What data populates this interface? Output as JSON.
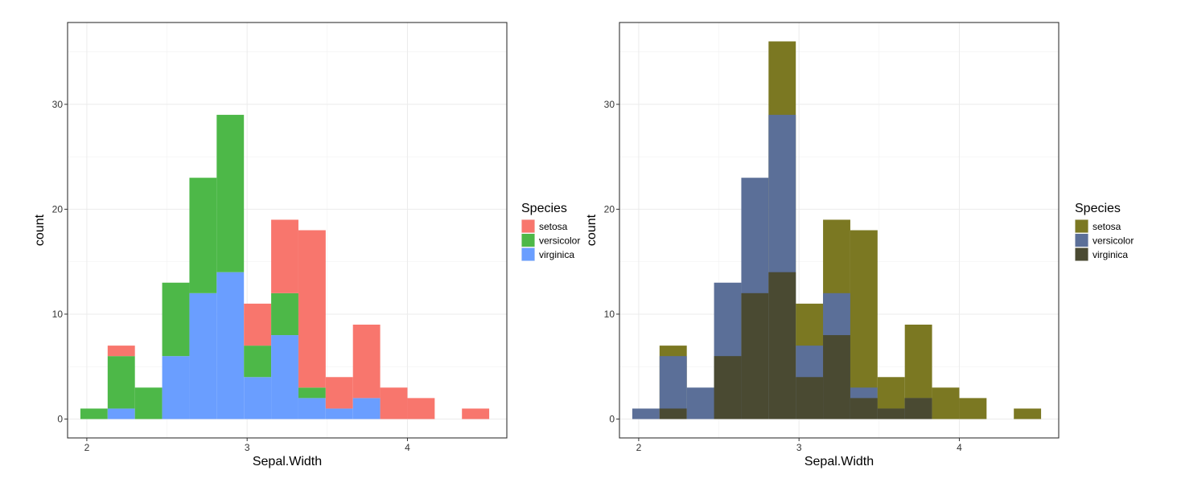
{
  "chart_data": [
    {
      "type": "bar",
      "variant": "stacked histogram",
      "xlabel": "Sepal.Width",
      "ylabel": "count",
      "x_ticks": [
        2,
        3,
        4
      ],
      "y_ticks": [
        0,
        10,
        20,
        30
      ],
      "xlim": [
        1.88,
        4.62
      ],
      "ylim": [
        -1.8,
        37.8
      ],
      "grid": true,
      "legend": {
        "title": "Species",
        "position": "right"
      },
      "bins": [
        [
          1.96,
          2.13
        ],
        [
          2.13,
          2.3
        ],
        [
          2.3,
          2.47
        ],
        [
          2.47,
          2.64
        ],
        [
          2.64,
          2.81
        ],
        [
          2.81,
          2.98
        ],
        [
          2.98,
          3.15
        ],
        [
          3.15,
          3.32
        ],
        [
          3.32,
          3.49
        ],
        [
          3.49,
          3.66
        ],
        [
          3.66,
          3.83
        ],
        [
          3.83,
          4.0
        ],
        [
          4.0,
          4.17
        ],
        [
          4.17,
          4.34
        ],
        [
          4.34,
          4.51
        ]
      ],
      "series": [
        {
          "name": "setosa",
          "color": "#F8766D",
          "values": [
            0,
            1,
            0,
            0,
            0,
            0,
            4,
            7,
            15,
            3,
            7,
            3,
            2,
            0,
            1
          ]
        },
        {
          "name": "versicolor",
          "color": "#4DB848",
          "values": [
            1,
            5,
            3,
            7,
            11,
            15,
            3,
            4,
            1,
            0,
            0,
            0,
            0,
            0,
            0
          ]
        },
        {
          "name": "virginica",
          "color": "#6A9EFF",
          "values": [
            0,
            1,
            0,
            6,
            12,
            14,
            4,
            8,
            2,
            1,
            2,
            0,
            0,
            0,
            0
          ]
        }
      ]
    },
    {
      "type": "bar",
      "variant": "overlapping histogram",
      "xlabel": "Sepal.Width",
      "ylabel": "count",
      "x_ticks": [
        2,
        3,
        4
      ],
      "y_ticks": [
        0,
        10,
        20,
        30
      ],
      "xlim": [
        1.88,
        4.62
      ],
      "ylim": [
        -1.8,
        37.8
      ],
      "grid": true,
      "legend": {
        "title": "Species",
        "position": "right"
      },
      "bins": [
        [
          1.96,
          2.13
        ],
        [
          2.13,
          2.3
        ],
        [
          2.3,
          2.47
        ],
        [
          2.47,
          2.64
        ],
        [
          2.64,
          2.81
        ],
        [
          2.81,
          2.98
        ],
        [
          2.98,
          3.15
        ],
        [
          3.15,
          3.32
        ],
        [
          3.32,
          3.49
        ],
        [
          3.49,
          3.66
        ],
        [
          3.66,
          3.83
        ],
        [
          3.83,
          4.0
        ],
        [
          4.0,
          4.17
        ],
        [
          4.17,
          4.34
        ],
        [
          4.34,
          4.51
        ]
      ],
      "series": [
        {
          "name": "setosa",
          "color": "#7B7822",
          "values": [
            0,
            7,
            0,
            0,
            0,
            36,
            11,
            19,
            18,
            4,
            9,
            3,
            2,
            0,
            1
          ]
        },
        {
          "name": "versicolor",
          "color": "#5B6F98",
          "values": [
            1,
            6,
            3,
            13,
            23,
            29,
            7,
            12,
            3,
            1,
            2,
            0,
            0,
            0,
            0
          ]
        },
        {
          "name": "virginica",
          "color": "#4A4A32",
          "values": [
            0,
            1,
            0,
            6,
            12,
            14,
            4,
            8,
            2,
            1,
            2,
            0,
            0,
            0,
            0
          ]
        }
      ]
    }
  ]
}
